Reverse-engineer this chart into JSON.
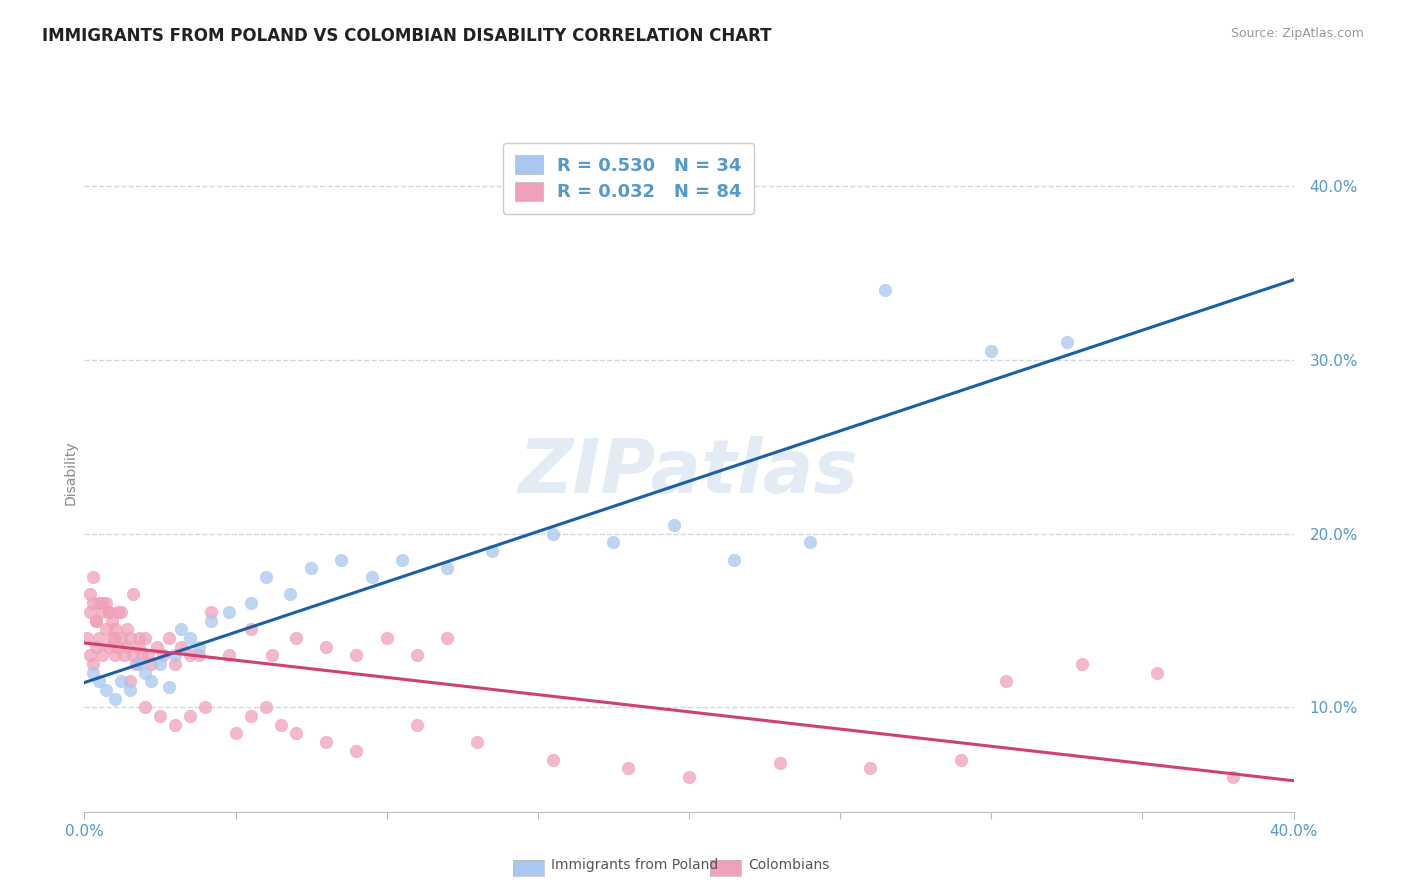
{
  "title": "IMMIGRANTS FROM POLAND VS COLOMBIAN DISABILITY CORRELATION CHART",
  "source_text": "Source: ZipAtlas.com",
  "ylabel": "Disability",
  "xlim": [
    0.0,
    0.4
  ],
  "ylim": [
    0.04,
    0.43
  ],
  "xticks": [
    0.0,
    0.05,
    0.1,
    0.15,
    0.2,
    0.25,
    0.3,
    0.35,
    0.4
  ],
  "yticks": [
    0.1,
    0.2,
    0.3,
    0.4
  ],
  "yticklabels": [
    "10.0%",
    "20.0%",
    "30.0%",
    "40.0%"
  ],
  "color_poland": "#a8c8f0",
  "color_colombia": "#f0a0b8",
  "color_line_poland": "#1a5fa8",
  "color_line_colombia": "#d04070",
  "legend_R_poland": "R = 0.530",
  "legend_N_poland": "N = 34",
  "legend_R_colombia": "R = 0.032",
  "legend_N_colombia": "N = 84",
  "watermark": "ZIPatlas",
  "background_color": "#ffffff",
  "grid_color": "#d0d8e8",
  "axis_color": "#5599cc",
  "poland_x": [
    0.003,
    0.005,
    0.007,
    0.01,
    0.012,
    0.015,
    0.018,
    0.02,
    0.022,
    0.025,
    0.028,
    0.03,
    0.032,
    0.035,
    0.038,
    0.042,
    0.048,
    0.055,
    0.06,
    0.068,
    0.075,
    0.085,
    0.095,
    0.105,
    0.12,
    0.135,
    0.155,
    0.175,
    0.195,
    0.215,
    0.24,
    0.265,
    0.3,
    0.325
  ],
  "poland_y": [
    0.12,
    0.115,
    0.11,
    0.105,
    0.115,
    0.11,
    0.125,
    0.12,
    0.115,
    0.125,
    0.112,
    0.13,
    0.145,
    0.14,
    0.135,
    0.15,
    0.155,
    0.16,
    0.175,
    0.165,
    0.18,
    0.185,
    0.175,
    0.185,
    0.18,
    0.19,
    0.2,
    0.195,
    0.205,
    0.185,
    0.195,
    0.34,
    0.305,
    0.31
  ],
  "colombia_x": [
    0.001,
    0.002,
    0.002,
    0.003,
    0.003,
    0.004,
    0.004,
    0.005,
    0.005,
    0.006,
    0.006,
    0.007,
    0.007,
    0.008,
    0.008,
    0.009,
    0.009,
    0.01,
    0.01,
    0.011,
    0.011,
    0.012,
    0.013,
    0.014,
    0.015,
    0.015,
    0.016,
    0.017,
    0.018,
    0.019,
    0.02,
    0.021,
    0.022,
    0.024,
    0.026,
    0.028,
    0.03,
    0.032,
    0.035,
    0.038,
    0.042,
    0.048,
    0.055,
    0.062,
    0.07,
    0.08,
    0.09,
    0.1,
    0.11,
    0.12,
    0.002,
    0.003,
    0.004,
    0.006,
    0.008,
    0.01,
    0.012,
    0.014,
    0.016,
    0.018,
    0.02,
    0.025,
    0.03,
    0.035,
    0.04,
    0.05,
    0.055,
    0.06,
    0.065,
    0.07,
    0.08,
    0.09,
    0.11,
    0.13,
    0.155,
    0.18,
    0.2,
    0.23,
    0.26,
    0.29,
    0.305,
    0.33,
    0.355,
    0.38
  ],
  "colombia_y": [
    0.14,
    0.13,
    0.155,
    0.125,
    0.16,
    0.135,
    0.15,
    0.14,
    0.16,
    0.13,
    0.155,
    0.145,
    0.16,
    0.135,
    0.155,
    0.14,
    0.15,
    0.13,
    0.145,
    0.135,
    0.155,
    0.14,
    0.13,
    0.135,
    0.14,
    0.115,
    0.13,
    0.125,
    0.135,
    0.13,
    0.14,
    0.13,
    0.125,
    0.135,
    0.13,
    0.14,
    0.125,
    0.135,
    0.13,
    0.13,
    0.155,
    0.13,
    0.145,
    0.13,
    0.14,
    0.135,
    0.13,
    0.14,
    0.13,
    0.14,
    0.165,
    0.175,
    0.15,
    0.16,
    0.155,
    0.14,
    0.155,
    0.145,
    0.165,
    0.14,
    0.1,
    0.095,
    0.09,
    0.095,
    0.1,
    0.085,
    0.095,
    0.1,
    0.09,
    0.085,
    0.08,
    0.075,
    0.09,
    0.08,
    0.07,
    0.065,
    0.06,
    0.068,
    0.065,
    0.07,
    0.115,
    0.125,
    0.12,
    0.06
  ]
}
